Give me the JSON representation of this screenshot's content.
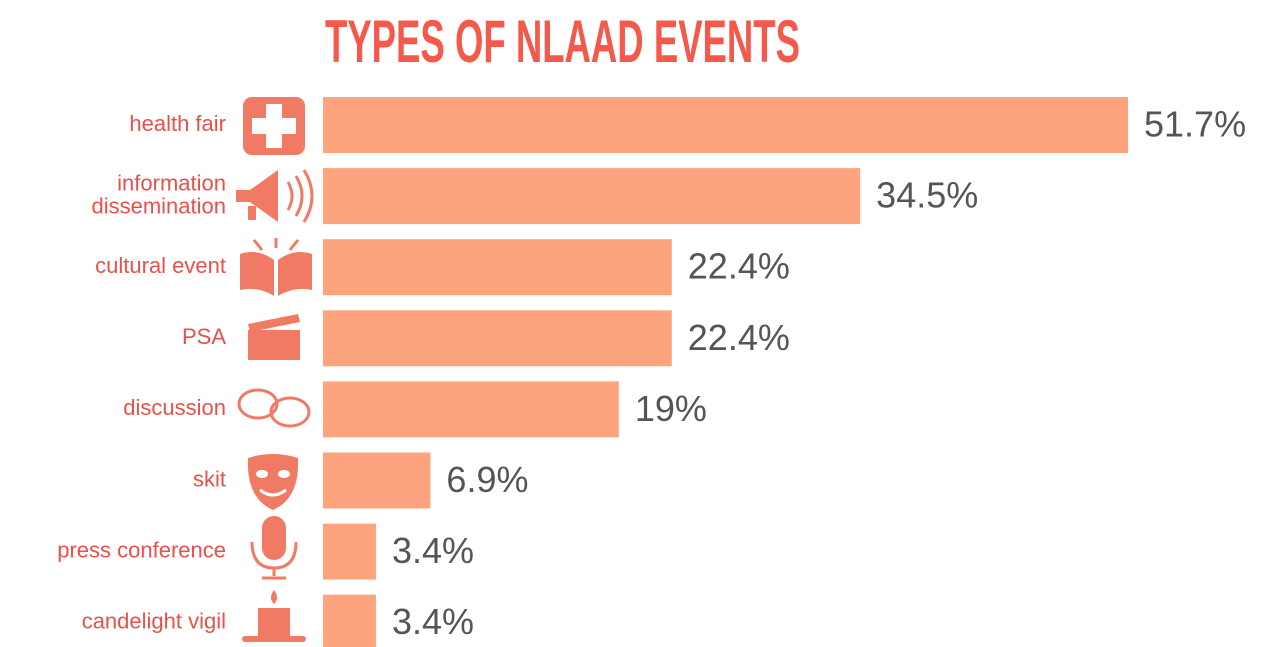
{
  "chart_data": {
    "type": "bar",
    "orientation": "horizontal",
    "title": "TYPES OF NLAAD EVENTS",
    "categories": [
      "health fair",
      "information dissemination",
      "cultural event",
      "PSA",
      "discussion",
      "skit",
      "press conference",
      "candelight vigil"
    ],
    "values": [
      51.7,
      34.5,
      22.4,
      22.4,
      19,
      6.9,
      3.4,
      3.4
    ],
    "value_labels": [
      "51.7%",
      "34.5%",
      "22.4%",
      "22.4%",
      "19%",
      "6.9%",
      "3.4%",
      "3.4%"
    ],
    "color": "#fda47f"
  }
}
